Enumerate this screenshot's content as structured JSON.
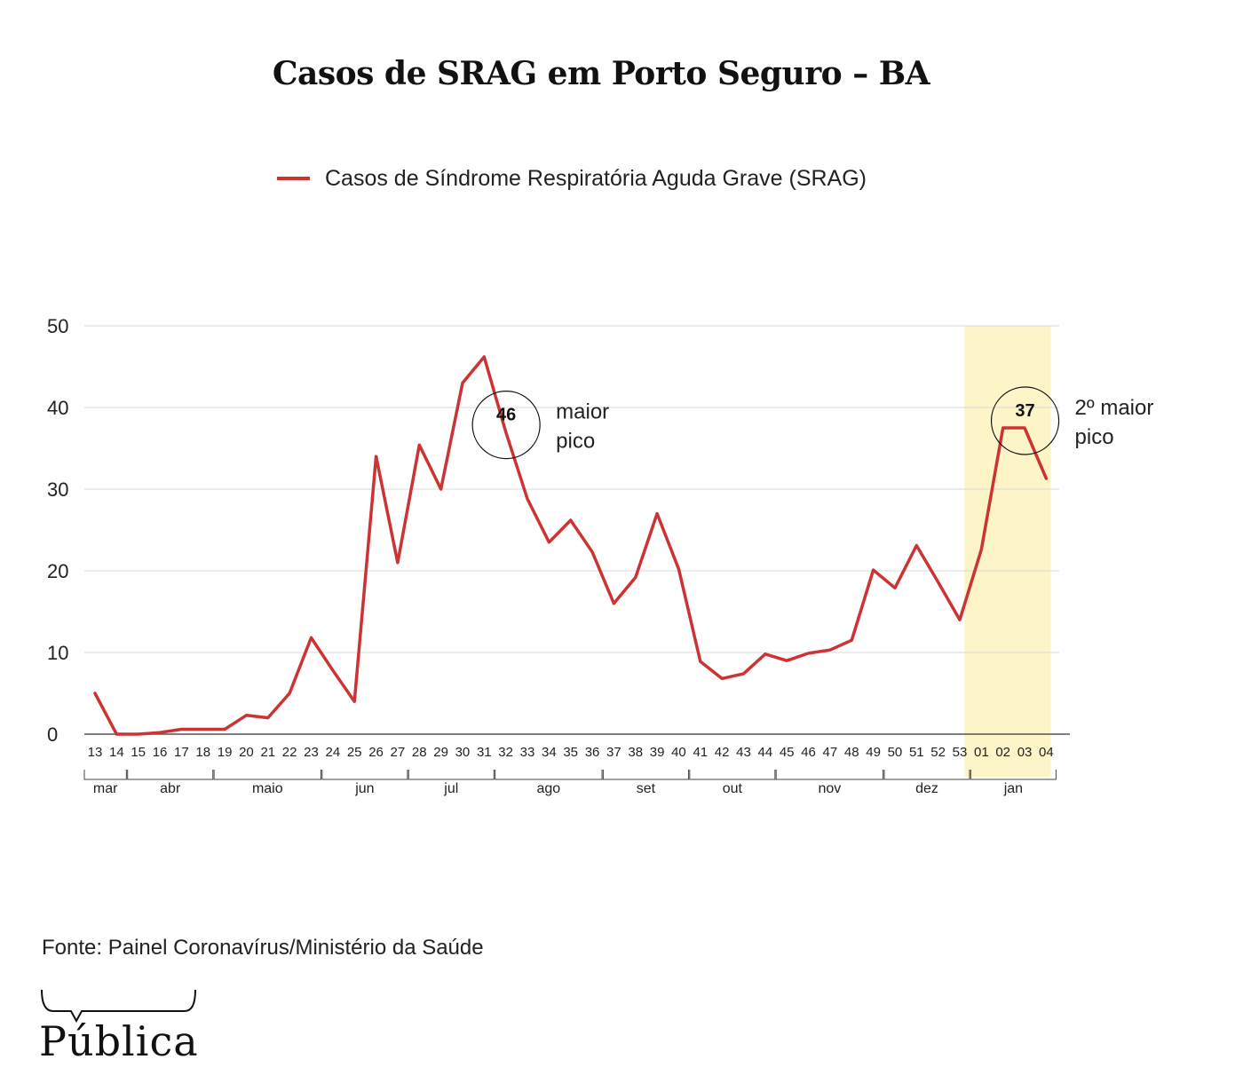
{
  "chart_data": {
    "type": "line",
    "title": "Casos de SRAG em Porto Seguro – BA",
    "legend_position": "top",
    "grid": true,
    "ylim": [
      0,
      50
    ],
    "yticks": [
      0,
      10,
      20,
      30,
      40,
      50
    ],
    "x": [
      "13",
      "14",
      "15",
      "16",
      "17",
      "18",
      "19",
      "20",
      "21",
      "22",
      "23",
      "24",
      "25",
      "26",
      "27",
      "28",
      "29",
      "30",
      "31",
      "32",
      "33",
      "34",
      "35",
      "36",
      "37",
      "38",
      "39",
      "40",
      "41",
      "42",
      "43",
      "44",
      "45",
      "46",
      "47",
      "48",
      "49",
      "50",
      "51",
      "52",
      "53",
      "01",
      "02",
      "03",
      "04"
    ],
    "series": [
      {
        "name": "Casos de Síndrome Respiratória Aguda Grave (SRAG)",
        "color": "#cc3333",
        "values": [
          5,
          0,
          0,
          0.2,
          0.6,
          0.6,
          0.6,
          2.3,
          2,
          5,
          11.8,
          7.8,
          4,
          34,
          21,
          35.4,
          30,
          43,
          46.2,
          37,
          28.8,
          23.5,
          26.2,
          22.3,
          16,
          19.2,
          27,
          20.2,
          8.9,
          6.8,
          7.4,
          9.8,
          9,
          9.9,
          10.3,
          11.5,
          20.1,
          17.9,
          23.1,
          18.6,
          14,
          22.6,
          37.5,
          37.5,
          31.3
        ]
      }
    ],
    "months": [
      {
        "label": "mar",
        "from": "13",
        "to": "14"
      },
      {
        "label": "abr",
        "from": "15",
        "to": "18"
      },
      {
        "label": "maio",
        "from": "19",
        "to": "23"
      },
      {
        "label": "jun",
        "from": "24",
        "to": "27"
      },
      {
        "label": "jul",
        "from": "28",
        "to": "31"
      },
      {
        "label": "ago",
        "from": "32",
        "to": "36"
      },
      {
        "label": "set",
        "from": "37",
        "to": "40"
      },
      {
        "label": "out",
        "from": "41",
        "to": "44"
      },
      {
        "label": "nov",
        "from": "45",
        "to": "49"
      },
      {
        "label": "dez",
        "from": "50",
        "to": "53"
      },
      {
        "label": "jan",
        "from": "01",
        "to": "04"
      }
    ],
    "highlight": {
      "from": "01",
      "to": "04",
      "color": "#fdf4c8"
    },
    "annotations": [
      {
        "x": "32",
        "value_label": "46",
        "text_lines": [
          "maior",
          "pico"
        ]
      },
      {
        "x": "03",
        "value_label": "37",
        "text_lines": [
          "2º maior",
          " pico"
        ]
      }
    ]
  },
  "footer": {
    "source": "Fonte: Painel Coronavírus/Ministério da Saúde",
    "logo_text": "Pública"
  }
}
